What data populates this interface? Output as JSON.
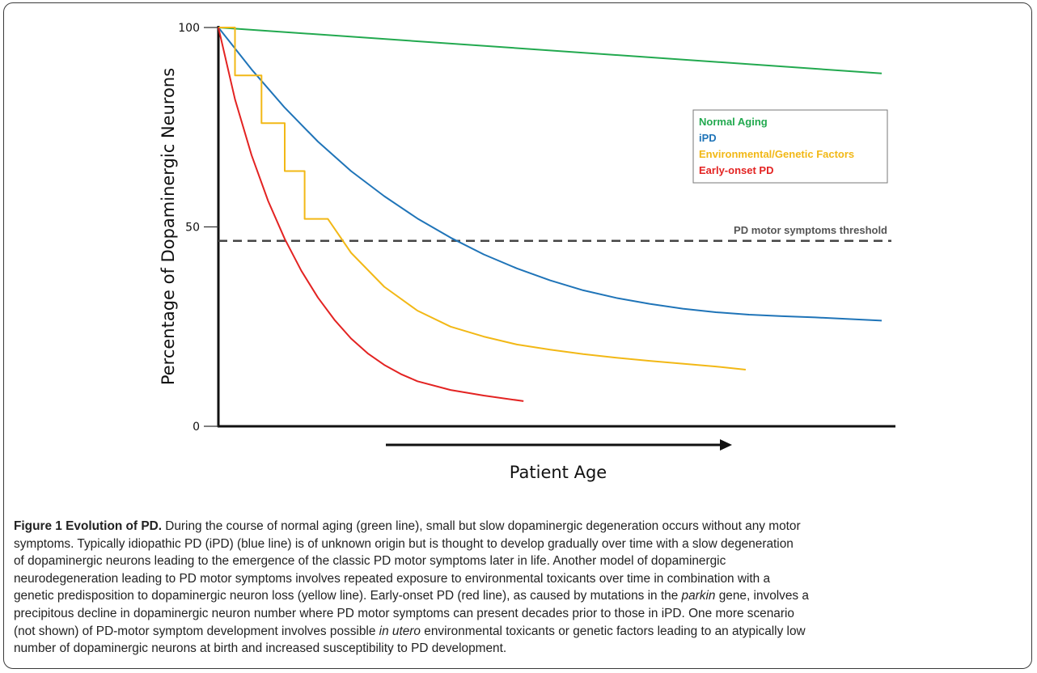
{
  "chart_data": {
    "type": "line",
    "xlabel": "Patient Age",
    "ylabel": "Percentage of Dopaminergic Neurons",
    "yticks": [
      100,
      50,
      0
    ],
    "ylim": [
      0,
      100
    ],
    "xlim": [
      0,
      100
    ],
    "legend_position": "top-right",
    "series": [
      {
        "name": "Normal Aging",
        "color": "#22a94f",
        "points": [
          [
            0,
            100
          ],
          [
            100,
            88.5
          ]
        ]
      },
      {
        "name": "iPD",
        "color": "#1f74b8",
        "points": [
          [
            0,
            100
          ],
          [
            5,
            89.5
          ],
          [
            10,
            79.9
          ],
          [
            15,
            71.4
          ],
          [
            20,
            64
          ],
          [
            25,
            57.7
          ],
          [
            30,
            52.1
          ],
          [
            35,
            47.3
          ],
          [
            40,
            43.1
          ],
          [
            45,
            39.6
          ],
          [
            50,
            36.6
          ],
          [
            55,
            34.1
          ],
          [
            60,
            32.2
          ],
          [
            65,
            30.7
          ],
          [
            70,
            29.5
          ],
          [
            75,
            28.6
          ],
          [
            80,
            28
          ],
          [
            85,
            27.6
          ],
          [
            90,
            27.3
          ],
          [
            100,
            26.5
          ]
        ]
      },
      {
        "name": "Environmental/Genetic Factors",
        "color": "#f2b816",
        "points": [
          [
            0,
            100
          ],
          [
            2.5,
            100
          ],
          [
            2.5,
            88
          ],
          [
            6.5,
            88
          ],
          [
            6.5,
            76
          ],
          [
            10,
            76
          ],
          [
            10,
            64
          ],
          [
            13,
            64
          ],
          [
            13,
            52
          ],
          [
            16.5,
            52
          ],
          [
            20,
            43.5
          ],
          [
            25,
            35
          ],
          [
            30,
            29
          ],
          [
            35,
            25
          ],
          [
            40,
            22.5
          ],
          [
            45,
            20.5
          ],
          [
            50,
            19.2
          ],
          [
            55,
            18.1
          ],
          [
            60,
            17.2
          ],
          [
            65,
            16.4
          ],
          [
            70,
            15.7
          ],
          [
            75,
            15
          ],
          [
            79.5,
            14.2
          ]
        ]
      },
      {
        "name": "Early-onset PD",
        "color": "#e32322",
        "points": [
          [
            0,
            100
          ],
          [
            2.5,
            82
          ],
          [
            5,
            68
          ],
          [
            7.5,
            56.5
          ],
          [
            10,
            47
          ],
          [
            12.5,
            39
          ],
          [
            15,
            32.3
          ],
          [
            17.5,
            26.7
          ],
          [
            20,
            22
          ],
          [
            22.5,
            18.3
          ],
          [
            25,
            15.4
          ],
          [
            27.5,
            13.1
          ],
          [
            30,
            11.3
          ],
          [
            35,
            9.1
          ],
          [
            40,
            7.7
          ],
          [
            46,
            6.3
          ]
        ]
      }
    ],
    "threshold": {
      "label": "PD motor symptoms threshold",
      "value": 46.5
    }
  },
  "caption": {
    "lead": "Figure 1 Evolution of PD.",
    "lines": [
      " During the course of normal aging (green line), small but slow dopaminergic degeneration occurs without any motor",
      "symptoms. Typically idiopathic PD (iPD) (blue line) is of unknown origin but is thought to develop gradually over time with a slow degeneration",
      "of dopaminergic neurons leading to the emergence of the classic PD motor symptoms later in life. Another model of dopaminergic",
      "neurodegeneration leading to PD motor symptoms involves repeated exposure to environmental toxicants over time in combination with a",
      "genetic predisposition to dopaminergic neuron loss (yellow line). Early-onset PD (red line), as caused by mutations in the ",
      "parkin",
      " gene, involves a",
      "precipitous decline in dopaminergic neuron number where PD motor symptoms can present decades prior to those in iPD. One more scenario",
      "(not shown) of PD-motor symptom development involves possible ",
      "in utero",
      " environmental toxicants or genetic factors leading to an atypically low",
      "number of dopaminergic neurons at birth and increased susceptibility to PD development."
    ]
  }
}
